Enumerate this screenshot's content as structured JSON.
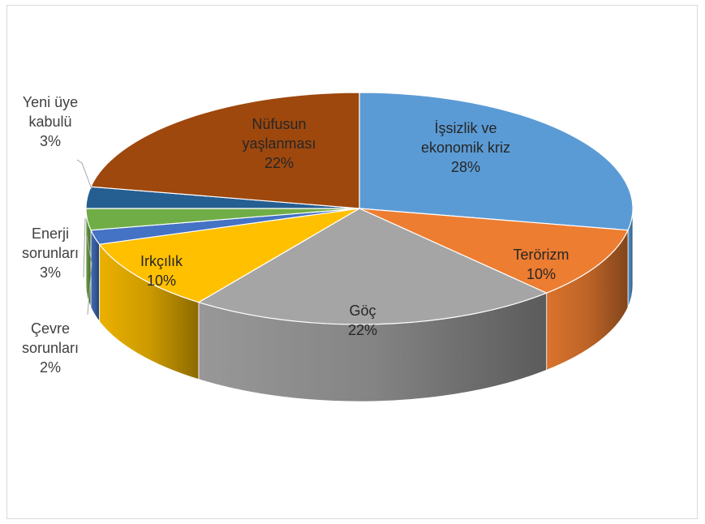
{
  "chart_data": {
    "type": "pie",
    "variant": "3d",
    "title": "",
    "slices": [
      {
        "name": "İşsizlik ve ekonomik kriz",
        "lines": [
          "İşsizlik ve",
          "ekonomik kriz",
          "28%"
        ],
        "value": 28,
        "color": "#5b9bd5"
      },
      {
        "name": "Terörizm",
        "lines": [
          "Terörizm",
          "10%"
        ],
        "value": 10,
        "color": "#ed7d31"
      },
      {
        "name": "Göç",
        "lines": [
          "Göç",
          "22%"
        ],
        "value": 22,
        "color": "#a5a5a5"
      },
      {
        "name": "Irkçılık",
        "lines": [
          "Irkçılık",
          "10%"
        ],
        "value": 10,
        "color": "#ffc000"
      },
      {
        "name": "Çevre sorunları",
        "lines": [
          "Çevre",
          "sorunları",
          "2%"
        ],
        "value": 2,
        "color": "#4472c4"
      },
      {
        "name": "Enerji sorunları",
        "lines": [
          "Enerji",
          "sorunları",
          "3%"
        ],
        "value": 3,
        "color": "#70ad47"
      },
      {
        "name": "Yeni üye kabulü",
        "lines": [
          "Yeni üye",
          "kabulü",
          "3%"
        ],
        "value": 3,
        "color": "#255e91"
      },
      {
        "name": "Nüfusun yaşlanması",
        "lines": [
          "Nüfusun",
          "yaşlanması",
          "22%"
        ],
        "value": 22,
        "color": "#9e480e"
      }
    ],
    "legend": "none",
    "data_labels": "category name and percentage"
  }
}
